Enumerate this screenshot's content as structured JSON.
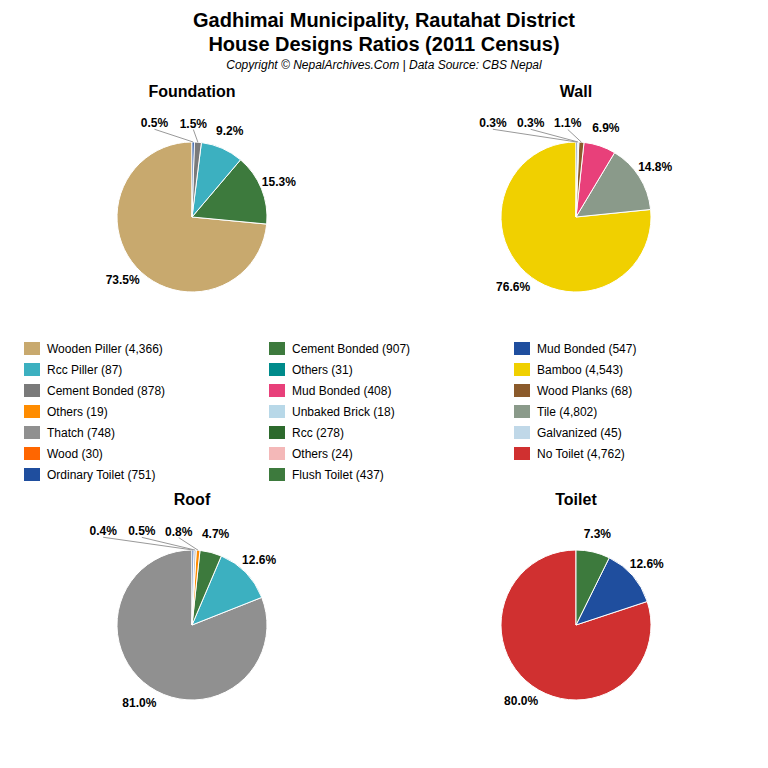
{
  "title": "Gadhimai Municipality, Rautahat District",
  "subtitle": "House Designs Ratios (2011 Census)",
  "annotations": [
    "Copyright © NepalArchives.Com | Data Source: CBS Nepal"
  ],
  "chart_data": [
    {
      "type": "pie",
      "title": "Foundation",
      "values": [
        73.5,
        15.3,
        9.2,
        1.5,
        0.5
      ],
      "value_labels": [
        "73.5%",
        "15.3%",
        "9.2%",
        "1.5%",
        "0.5%"
      ],
      "colors": [
        "#C8A96E",
        "#3D7A3D",
        "#3CB0C0",
        "#7A7A7A",
        "#1F4E9E"
      ],
      "data_labels": true
    },
    {
      "type": "pie",
      "title": "Wall",
      "values": [
        76.6,
        14.8,
        6.9,
        1.1,
        0.3,
        0.3
      ],
      "value_labels": [
        "76.6%",
        "14.8%",
        "6.9%",
        "1.1%",
        "0.3%",
        "0.3%"
      ],
      "colors": [
        "#F0D000",
        "#8A9A8A",
        "#E8407A",
        "#8B5A2B",
        "#B8D8E8",
        "#1F4E9E"
      ],
      "data_labels": true
    },
    {
      "type": "pie",
      "title": "Roof",
      "values": [
        81.0,
        12.6,
        4.7,
        0.8,
        0.5,
        0.4
      ],
      "value_labels": [
        "81.0%",
        "12.6%",
        "4.7%",
        "0.8%",
        "0.5%",
        "0.4%"
      ],
      "colors": [
        "#909090",
        "#3CB0C0",
        "#3D7A3D",
        "#FF8C00",
        "#C0C0C0",
        "#1F4E9E"
      ],
      "data_labels": true
    },
    {
      "type": "pie",
      "title": "Toilet",
      "values": [
        80.0,
        12.6,
        7.3
      ],
      "value_labels": [
        "80.0%",
        "12.6%",
        "7.3%"
      ],
      "colors": [
        "#D03030",
        "#1F4E9E",
        "#3D7A3D"
      ],
      "data_labels": true
    }
  ],
  "legend_entries": [
    [
      {
        "name": "Wooden Piller (4,366)",
        "color": "#C8A96E"
      },
      {
        "name": "Rcc Piller (87)",
        "color": "#3CB0C0"
      },
      {
        "name": "Cement Bonded (878)",
        "color": "#7A7A7A"
      },
      {
        "name": "Others (19)",
        "color": "#FF8C00"
      },
      {
        "name": "Thatch (748)",
        "color": "#909090"
      },
      {
        "name": "Wood (30)",
        "color": "#FF6600"
      },
      {
        "name": "Ordinary Toilet (751)",
        "color": "#1F4E9E"
      }
    ],
    [
      {
        "name": "Cement Bonded (907)",
        "color": "#3D7A3D"
      },
      {
        "name": "Others (31)",
        "color": "#008B8B"
      },
      {
        "name": "Mud Bonded (408)",
        "color": "#E8407A"
      },
      {
        "name": "Unbaked Brick (18)",
        "color": "#B8D8E8"
      },
      {
        "name": "Rcc (278)",
        "color": "#2D6A2D"
      },
      {
        "name": "Others (24)",
        "color": "#F4B8B8"
      },
      {
        "name": "Flush Toilet (437)",
        "color": "#3D7A3D"
      }
    ],
    [
      {
        "name": "Mud Bonded (547)",
        "color": "#1F4E9E"
      },
      {
        "name": "Bamboo (4,543)",
        "color": "#F0D000"
      },
      {
        "name": "Wood Planks (68)",
        "color": "#8B5A2B"
      },
      {
        "name": "Tile (4,802)",
        "color": "#8A9A8A"
      },
      {
        "name": "Galvanized (45)",
        "color": "#C0D8E8"
      },
      {
        "name": "No Toilet (4,762)",
        "color": "#D03030"
      }
    ]
  ]
}
